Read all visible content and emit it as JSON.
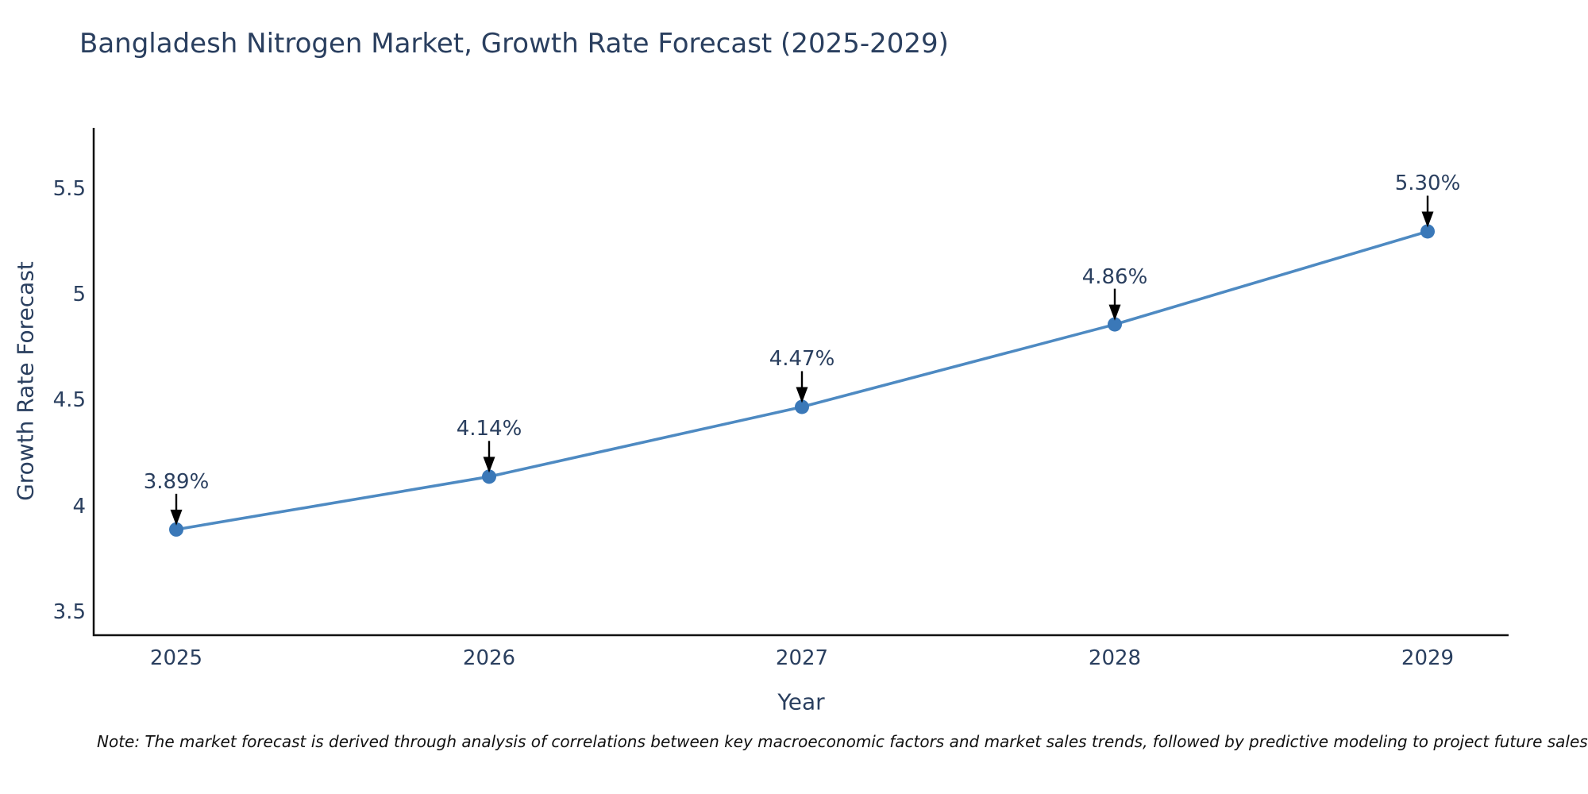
{
  "chart": {
    "title": "Bangladesh Nitrogen Market, Growth Rate Forecast (2025-2029)",
    "x_axis_title": "Year",
    "y_axis_title": "Growth Rate Forecast",
    "note": "Note: The market forecast is derived through analysis of correlations between key macroeconomic factors and market sales trends, followed by predictive modeling to project future sales",
    "colors": {
      "title_text": "#2a3f5f",
      "tick_text": "#2a3f5f",
      "axis_line": "#111111",
      "series_line": "#4e8ac2",
      "marker_fill": "#3a78b8",
      "annotation_arrow": "#000000",
      "note_text": "#111111",
      "background": "#ffffff"
    }
  },
  "chart_data": {
    "type": "line",
    "title": "Bangladesh Nitrogen Market, Growth Rate Forecast (2025-2029)",
    "xlabel": "Year",
    "ylabel": "Growth Rate Forecast",
    "x": [
      2025,
      2026,
      2027,
      2028,
      2029
    ],
    "values": [
      3.89,
      4.14,
      4.47,
      4.86,
      5.3
    ],
    "point_labels": [
      "3.89%",
      "4.14%",
      "4.47%",
      "4.86%",
      "5.30%"
    ],
    "xticks": [
      "2025",
      "2026",
      "2027",
      "2028",
      "2029"
    ],
    "yticks": [
      3.5,
      4,
      4.5,
      5,
      5.5
    ],
    "ytick_labels": [
      "3.5",
      "4",
      "4.5",
      "5",
      "5.5"
    ],
    "ylim": [
      3.39,
      5.79
    ],
    "grid": false,
    "legend": false,
    "annotation_style": "value labels above points with downward black arrows",
    "note": "Note: The market forecast is derived through analysis of correlations between key macroeconomic factors and market sales trends, followed by predictive modeling to project future sales"
  }
}
